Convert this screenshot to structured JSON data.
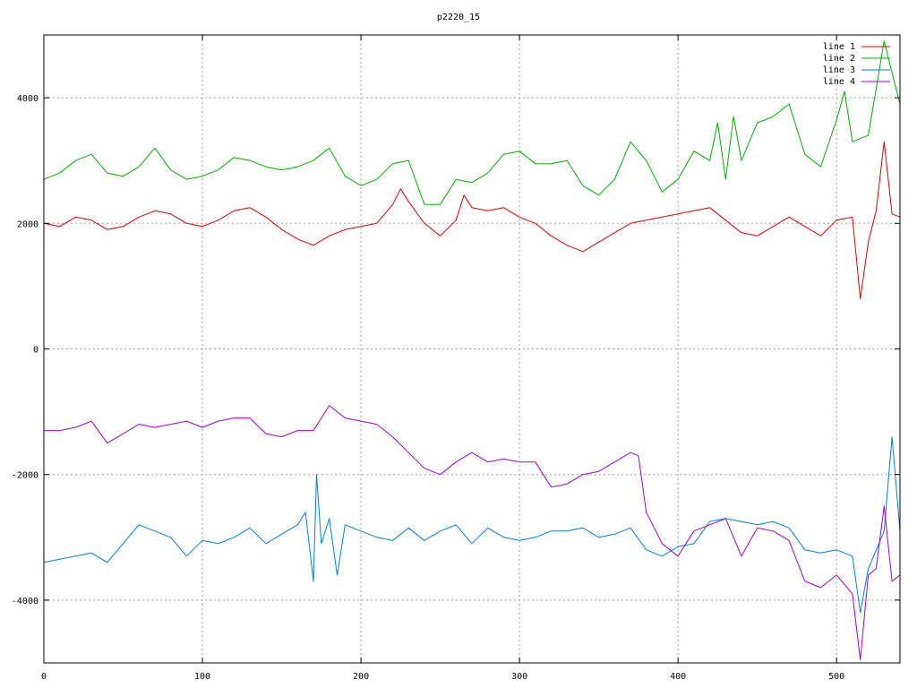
{
  "chart_data": {
    "type": "line",
    "title": "p2220_15",
    "xlabel": "",
    "ylabel": "",
    "xlim": [
      0,
      540
    ],
    "ylim": [
      -5000,
      5000
    ],
    "xticks": [
      0,
      100,
      200,
      300,
      400,
      500
    ],
    "yticks": [
      -4000,
      -2000,
      0,
      2000,
      4000
    ],
    "grid": true,
    "legend": "top-right",
    "series": [
      {
        "name": "line 1",
        "color": "#e00000",
        "points": [
          [
            0,
            2000
          ],
          [
            10,
            1950
          ],
          [
            20,
            2100
          ],
          [
            30,
            2050
          ],
          [
            40,
            1900
          ],
          [
            50,
            1950
          ],
          [
            60,
            2100
          ],
          [
            70,
            2200
          ],
          [
            80,
            2150
          ],
          [
            90,
            2000
          ],
          [
            100,
            1950
          ],
          [
            110,
            2050
          ],
          [
            120,
            2200
          ],
          [
            130,
            2250
          ],
          [
            140,
            2100
          ],
          [
            150,
            1900
          ],
          [
            160,
            1750
          ],
          [
            170,
            1650
          ],
          [
            180,
            1800
          ],
          [
            190,
            1900
          ],
          [
            200,
            1950
          ],
          [
            210,
            2000
          ],
          [
            220,
            2300
          ],
          [
            225,
            2550
          ],
          [
            230,
            2350
          ],
          [
            240,
            2000
          ],
          [
            250,
            1800
          ],
          [
            260,
            2050
          ],
          [
            265,
            2450
          ],
          [
            270,
            2250
          ],
          [
            280,
            2200
          ],
          [
            290,
            2250
          ],
          [
            300,
            2100
          ],
          [
            310,
            2000
          ],
          [
            320,
            1800
          ],
          [
            330,
            1650
          ],
          [
            340,
            1550
          ],
          [
            350,
            1700
          ],
          [
            360,
            1850
          ],
          [
            370,
            2000
          ],
          [
            380,
            2050
          ],
          [
            390,
            2100
          ],
          [
            400,
            2150
          ],
          [
            410,
            2200
          ],
          [
            420,
            2250
          ],
          [
            430,
            2050
          ],
          [
            440,
            1850
          ],
          [
            450,
            1800
          ],
          [
            460,
            1950
          ],
          [
            470,
            2100
          ],
          [
            480,
            1950
          ],
          [
            490,
            1800
          ],
          [
            500,
            2050
          ],
          [
            510,
            2100
          ],
          [
            515,
            800
          ],
          [
            520,
            1700
          ],
          [
            525,
            2200
          ],
          [
            530,
            3300
          ],
          [
            535,
            2150
          ],
          [
            540,
            2100
          ]
        ]
      },
      {
        "name": "line 2",
        "color": "#00b000",
        "points": [
          [
            0,
            2700
          ],
          [
            10,
            2800
          ],
          [
            20,
            3000
          ],
          [
            30,
            3100
          ],
          [
            40,
            2800
          ],
          [
            50,
            2750
          ],
          [
            60,
            2900
          ],
          [
            70,
            3200
          ],
          [
            80,
            2850
          ],
          [
            90,
            2700
          ],
          [
            100,
            2750
          ],
          [
            110,
            2850
          ],
          [
            120,
            3050
          ],
          [
            130,
            3000
          ],
          [
            140,
            2900
          ],
          [
            150,
            2850
          ],
          [
            160,
            2900
          ],
          [
            170,
            3000
          ],
          [
            180,
            3200
          ],
          [
            190,
            2750
          ],
          [
            200,
            2600
          ],
          [
            210,
            2700
          ],
          [
            220,
            2950
          ],
          [
            230,
            3000
          ],
          [
            240,
            2300
          ],
          [
            250,
            2300
          ],
          [
            260,
            2700
          ],
          [
            270,
            2650
          ],
          [
            280,
            2800
          ],
          [
            290,
            3100
          ],
          [
            300,
            3150
          ],
          [
            310,
            2950
          ],
          [
            320,
            2950
          ],
          [
            330,
            3000
          ],
          [
            340,
            2600
          ],
          [
            350,
            2450
          ],
          [
            360,
            2700
          ],
          [
            370,
            3300
          ],
          [
            380,
            3000
          ],
          [
            390,
            2500
          ],
          [
            400,
            2700
          ],
          [
            410,
            3150
          ],
          [
            420,
            3000
          ],
          [
            425,
            3600
          ],
          [
            430,
            2700
          ],
          [
            435,
            3700
          ],
          [
            440,
            3000
          ],
          [
            450,
            3600
          ],
          [
            460,
            3700
          ],
          [
            470,
            3900
          ],
          [
            480,
            3100
          ],
          [
            490,
            2900
          ],
          [
            500,
            3650
          ],
          [
            505,
            4100
          ],
          [
            510,
            3300
          ],
          [
            520,
            3400
          ],
          [
            530,
            4900
          ],
          [
            535,
            4400
          ],
          [
            540,
            3900
          ]
        ]
      },
      {
        "name": "line 3",
        "color": "#0080e0",
        "points": [
          [
            0,
            -3400
          ],
          [
            10,
            -3350
          ],
          [
            20,
            -3300
          ],
          [
            30,
            -3250
          ],
          [
            40,
            -3400
          ],
          [
            50,
            -3100
          ],
          [
            60,
            -2800
          ],
          [
            70,
            -2900
          ],
          [
            80,
            -3000
          ],
          [
            90,
            -3300
          ],
          [
            100,
            -3050
          ],
          [
            110,
            -3100
          ],
          [
            120,
            -3000
          ],
          [
            130,
            -2850
          ],
          [
            140,
            -3100
          ],
          [
            150,
            -2950
          ],
          [
            160,
            -2800
          ],
          [
            165,
            -2600
          ],
          [
            170,
            -3700
          ],
          [
            172,
            -2000
          ],
          [
            175,
            -3100
          ],
          [
            180,
            -2700
          ],
          [
            185,
            -3600
          ],
          [
            190,
            -2800
          ],
          [
            200,
            -2900
          ],
          [
            210,
            -3000
          ],
          [
            220,
            -3050
          ],
          [
            230,
            -2850
          ],
          [
            240,
            -3050
          ],
          [
            250,
            -2900
          ],
          [
            260,
            -2800
          ],
          [
            270,
            -3100
          ],
          [
            280,
            -2850
          ],
          [
            290,
            -3000
          ],
          [
            300,
            -3050
          ],
          [
            310,
            -3000
          ],
          [
            320,
            -2900
          ],
          [
            330,
            -2900
          ],
          [
            340,
            -2850
          ],
          [
            350,
            -3000
          ],
          [
            360,
            -2950
          ],
          [
            370,
            -2850
          ],
          [
            380,
            -3200
          ],
          [
            390,
            -3300
          ],
          [
            400,
            -3150
          ],
          [
            410,
            -3100
          ],
          [
            420,
            -2750
          ],
          [
            430,
            -2700
          ],
          [
            440,
            -2750
          ],
          [
            450,
            -2800
          ],
          [
            460,
            -2750
          ],
          [
            470,
            -2850
          ],
          [
            480,
            -3200
          ],
          [
            490,
            -3250
          ],
          [
            500,
            -3200
          ],
          [
            510,
            -3300
          ],
          [
            515,
            -4200
          ],
          [
            520,
            -3500
          ],
          [
            530,
            -2900
          ],
          [
            535,
            -1400
          ],
          [
            540,
            -2900
          ]
        ]
      },
      {
        "name": "line 4",
        "color": "#a000e0",
        "points": [
          [
            0,
            -1300
          ],
          [
            10,
            -1300
          ],
          [
            20,
            -1250
          ],
          [
            30,
            -1150
          ],
          [
            40,
            -1500
          ],
          [
            50,
            -1350
          ],
          [
            60,
            -1200
          ],
          [
            70,
            -1250
          ],
          [
            80,
            -1200
          ],
          [
            90,
            -1150
          ],
          [
            100,
            -1250
          ],
          [
            110,
            -1150
          ],
          [
            120,
            -1100
          ],
          [
            130,
            -1100
          ],
          [
            140,
            -1350
          ],
          [
            150,
            -1400
          ],
          [
            160,
            -1300
          ],
          [
            170,
            -1300
          ],
          [
            180,
            -900
          ],
          [
            190,
            -1100
          ],
          [
            200,
            -1150
          ],
          [
            210,
            -1200
          ],
          [
            220,
            -1400
          ],
          [
            230,
            -1650
          ],
          [
            240,
            -1900
          ],
          [
            250,
            -2000
          ],
          [
            260,
            -1800
          ],
          [
            270,
            -1650
          ],
          [
            280,
            -1800
          ],
          [
            290,
            -1750
          ],
          [
            300,
            -1800
          ],
          [
            310,
            -1800
          ],
          [
            320,
            -2200
          ],
          [
            330,
            -2150
          ],
          [
            340,
            -2000
          ],
          [
            350,
            -1950
          ],
          [
            360,
            -1800
          ],
          [
            370,
            -1650
          ],
          [
            375,
            -1700
          ],
          [
            380,
            -2600
          ],
          [
            390,
            -3100
          ],
          [
            400,
            -3300
          ],
          [
            410,
            -2900
          ],
          [
            420,
            -2800
          ],
          [
            430,
            -2700
          ],
          [
            440,
            -3300
          ],
          [
            450,
            -2850
          ],
          [
            460,
            -2900
          ],
          [
            470,
            -3050
          ],
          [
            480,
            -3700
          ],
          [
            490,
            -3800
          ],
          [
            500,
            -3600
          ],
          [
            510,
            -3900
          ],
          [
            515,
            -4950
          ],
          [
            520,
            -3600
          ],
          [
            525,
            -3500
          ],
          [
            530,
            -2500
          ],
          [
            535,
            -3700
          ],
          [
            540,
            -3600
          ]
        ]
      }
    ]
  }
}
